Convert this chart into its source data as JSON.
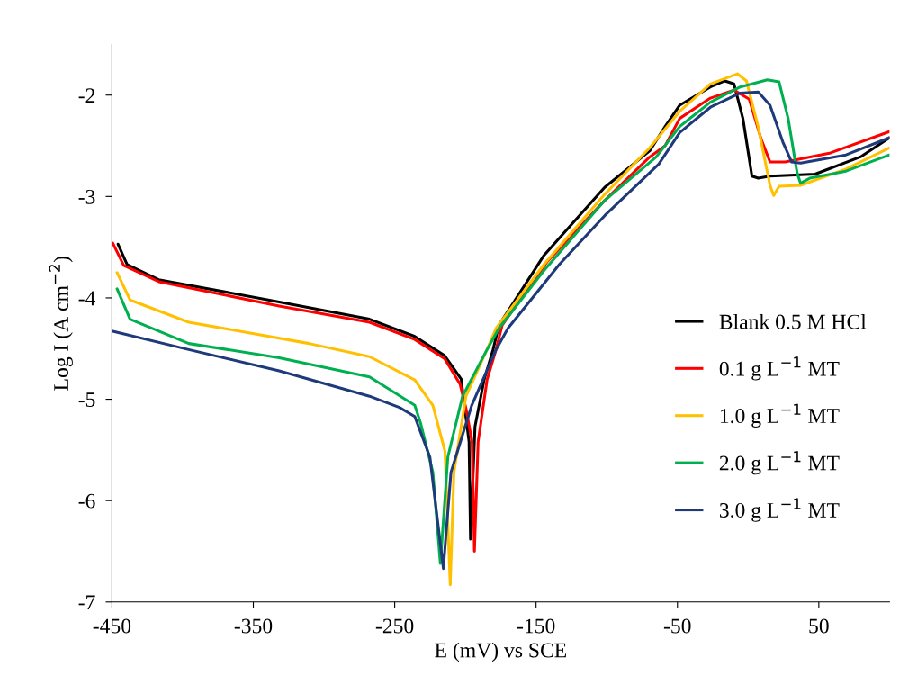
{
  "chart_data": {
    "type": "line",
    "xlabel": "E (mV) vs SCE",
    "ylabel": "Log I (A cm$^{−2}$)",
    "xlim": [
      -450,
      100
    ],
    "ylim": [
      -7,
      -1.5
    ],
    "xticks": [
      -450,
      -350,
      -250,
      -150,
      -50,
      50
    ],
    "yticks": [
      -7,
      -6,
      -5,
      -4,
      -3,
      -2
    ],
    "grid": false,
    "legend": "center right",
    "marker": "none",
    "line_style": "solid",
    "series": [
      {
        "name": "Blank 0.5 M HCl",
        "color": "#000000",
        "x": [
          -445.7,
          -439.3,
          -417,
          -331.7,
          -267.8,
          -235.8,
          -214.7,
          -203,
          -201.5,
          -197.4,
          -196.4,
          -193.2,
          -186.8,
          -180.4,
          -176.3,
          -144.4,
          -101.5,
          -69.6,
          -58.7,
          -48.4,
          -26.7,
          -16.5,
          -10,
          -3.7,
          2.7,
          7.2,
          15.5,
          47.4,
          79.4,
          100
        ],
        "values": [
          -3.47,
          -3.67,
          -3.82,
          -4.04,
          -4.21,
          -4.38,
          -4.57,
          -4.8,
          -4.97,
          -5.42,
          -6.38,
          -5.27,
          -4.81,
          -4.51,
          -4.27,
          -3.58,
          -2.91,
          -2.55,
          -2.31,
          -2.1,
          -1.92,
          -1.86,
          -1.89,
          -2.23,
          -2.8,
          -2.82,
          -2.8,
          -2.78,
          -2.61,
          -2.42
        ]
      },
      {
        "name": "0.1 g L$^{−1}$ MT",
        "color": "#ff0000",
        "x": [
          -449.4,
          -441.7,
          -416.8,
          -331.7,
          -267.8,
          -235.8,
          -214.7,
          -203.8,
          -199.6,
          -195.3,
          -193.6,
          -191,
          -184.7,
          -178.3,
          -174,
          -142,
          -101.5,
          -69.6,
          -58.7,
          -48.4,
          -26.7,
          -10,
          0.8,
          9.1,
          15.5,
          26.2,
          58.3,
          100
        ],
        "values": [
          -3.46,
          -3.68,
          -3.84,
          -4.08,
          -4.24,
          -4.41,
          -4.6,
          -4.85,
          -5.09,
          -5.42,
          -6.5,
          -5.42,
          -4.81,
          -4.51,
          -4.27,
          -3.64,
          -3.04,
          -2.61,
          -2.5,
          -2.23,
          -2.03,
          -1.95,
          -2.04,
          -2.43,
          -2.66,
          -2.66,
          -2.57,
          -2.36
        ]
      },
      {
        "name": "1.0 g L$^{−1}$ MT",
        "color": "#ffc000",
        "x": [
          -446.4,
          -437.2,
          -395.7,
          -310.6,
          -267.8,
          -235.8,
          -223,
          -214.5,
          -210.7,
          -208.1,
          -199.6,
          -184.7,
          -178.3,
          -144.4,
          -101.5,
          -69.6,
          -48.4,
          -26.7,
          -7.6,
          -1.2,
          7.2,
          15.5,
          18.1,
          21.9,
          37.1,
          69.2,
          100
        ],
        "values": [
          -3.75,
          -4.02,
          -4.24,
          -4.45,
          -4.58,
          -4.81,
          -5.06,
          -5.51,
          -6.83,
          -5.72,
          -4.97,
          -4.51,
          -4.3,
          -3.67,
          -2.98,
          -2.52,
          -2.16,
          -1.89,
          -1.79,
          -1.86,
          -2.32,
          -2.89,
          -2.99,
          -2.9,
          -2.89,
          -2.73,
          -2.52
        ]
      },
      {
        "name": "2.0 g L$^{−1}$ MT",
        "color": "#00b050",
        "x": [
          -446.4,
          -437.2,
          -395.7,
          -331.7,
          -267.8,
          -235.8,
          -231.6,
          -223,
          -217.7,
          -212.4,
          -202,
          -184.7,
          -176.3,
          -144.4,
          -101.5,
          -65,
          -48.4,
          -26.7,
          -5.6,
          13.6,
          21.9,
          28.3,
          34.7,
          37.1,
          43.6,
          69.2,
          100
        ],
        "values": [
          -3.91,
          -4.21,
          -4.45,
          -4.59,
          -4.78,
          -5.06,
          -5.24,
          -5.72,
          -6.62,
          -5.57,
          -4.97,
          -4.51,
          -4.3,
          -3.73,
          -3.04,
          -2.61,
          -2.31,
          -2.07,
          -1.92,
          -1.85,
          -1.87,
          -2.23,
          -2.77,
          -2.87,
          -2.82,
          -2.75,
          -2.59
        ]
      },
      {
        "name": "3.0 g L$^{−1}$ MT",
        "color": "#1f3a7a",
        "x": [
          -449.4,
          -395.7,
          -331.7,
          -267.8,
          -246.7,
          -235.8,
          -225.1,
          -215.6,
          -210.2,
          -195.5,
          -178.3,
          -169.9,
          -133.5,
          -101.5,
          -63.2,
          -48.4,
          -26.7,
          -5.6,
          7.2,
          15.5,
          24.5,
          30.8,
          37.1,
          69.2,
          100
        ],
        "values": [
          -4.33,
          -4.51,
          -4.72,
          -4.97,
          -5.08,
          -5.17,
          -5.57,
          -6.67,
          -5.72,
          -5.06,
          -4.51,
          -4.3,
          -3.67,
          -3.19,
          -2.68,
          -2.37,
          -2.12,
          -1.98,
          -1.97,
          -2.1,
          -2.46,
          -2.66,
          -2.67,
          -2.59,
          -2.42
        ]
      }
    ]
  }
}
